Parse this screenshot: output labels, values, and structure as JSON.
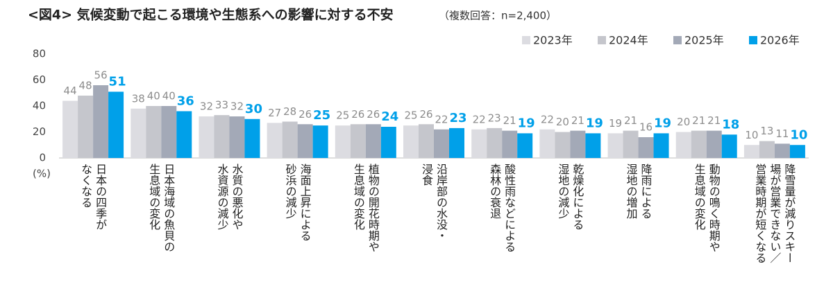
{
  "chart_data": {
    "type": "bar",
    "title": "<図4> 気候変動で起こる環境や生態系への影響に対する不安",
    "subtitle": "（複数回答：n=2,400）",
    "y_unit": "(%)",
    "categories": [
      "日本の四季が\nなくなる",
      "日本海域の魚貝の\n生息域の変化",
      "水質の悪化や\n水資源の減少",
      "海面上昇による\n砂浜の減少",
      "植物の開花時期や\n生息域の変化",
      "沿岸部の水没・\n浸食",
      "酸性雨などによる\n森林の衰退",
      "乾燥化による\n湿地の減少",
      "降雨による\n湿地の増加",
      "動物の鳴く時期や\n生息域の変化",
      "降雪量が減りスキー\n場が営業できない／\n営業時期が短くなる"
    ],
    "series": [
      {
        "name": "2023年",
        "color": "#dcdce1",
        "label_color": "#8c8c8c",
        "values": [
          44,
          38,
          32,
          27,
          25,
          25,
          22,
          22,
          19,
          20,
          10
        ]
      },
      {
        "name": "2024年",
        "color": "#c5c6cc",
        "label_color": "#8c8c8c",
        "values": [
          48,
          40,
          33,
          28,
          26,
          26,
          23,
          20,
          21,
          21,
          13
        ]
      },
      {
        "name": "2025年",
        "color": "#a3a9b7",
        "label_color": "#8c8c8c",
        "values": [
          56,
          40,
          32,
          26,
          26,
          22,
          21,
          21,
          16,
          21,
          11
        ]
      },
      {
        "name": "2026年",
        "color": "#00a0e9",
        "label_color": "#00a0e9",
        "values": [
          51,
          36,
          30,
          25,
          24,
          23,
          19,
          19,
          19,
          18,
          10
        ]
      }
    ],
    "ylim": [
      0,
      80
    ],
    "yticks": [
      0,
      20,
      40,
      60,
      80
    ],
    "grid": false,
    "legend": "top-right"
  }
}
